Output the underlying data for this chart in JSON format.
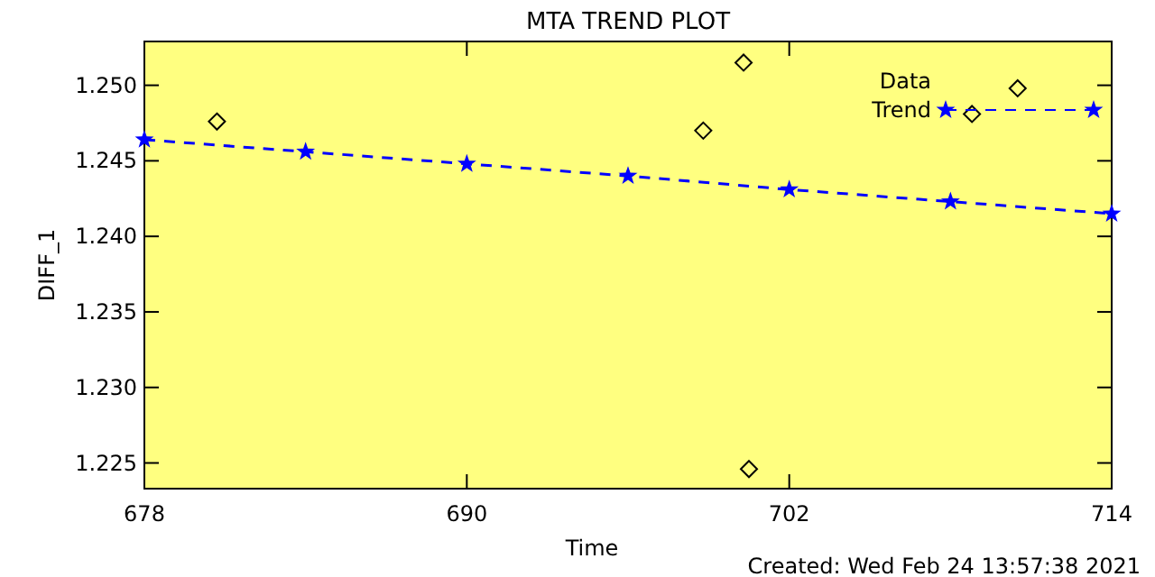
{
  "chart_data": {
    "type": "scatter",
    "title": "MTA TREND PLOT",
    "xlabel": "Time",
    "ylabel": "DIFF_1",
    "xlim": [
      678,
      714
    ],
    "xticks": [
      678,
      690,
      702,
      714
    ],
    "ylim": [
      1.2233,
      1.2529
    ],
    "yticks": [
      {
        "value": 1.225,
        "label": "1.225"
      },
      {
        "value": 1.23,
        "label": "1.230"
      },
      {
        "value": 1.235,
        "label": "1.235"
      },
      {
        "value": 1.24,
        "label": "1.240"
      },
      {
        "value": 1.245,
        "label": "1.245"
      },
      {
        "value": 1.25,
        "label": "1.250"
      }
    ],
    "legend": "top right",
    "grid": false,
    "series": [
      {
        "name": "Data",
        "marker": "diamond",
        "color": "#000000",
        "x": [
          680.7,
          698.8,
          700.3,
          700.5,
          708.8,
          710.5
        ],
        "values": [
          1.2476,
          1.247,
          1.2515,
          1.2246,
          1.2481,
          1.2498
        ]
      },
      {
        "name": "Trend",
        "type": "line",
        "marker": "star",
        "line_style": "dashed",
        "color": "#0000ff",
        "x": [
          678,
          684,
          690,
          696,
          702,
          708,
          714
        ],
        "values": [
          1.2464,
          1.2456,
          1.2448,
          1.244,
          1.2431,
          1.2423,
          1.2415
        ]
      }
    ],
    "annotations": [
      "Created: Wed Feb 24 13:57:38 2021"
    ]
  }
}
